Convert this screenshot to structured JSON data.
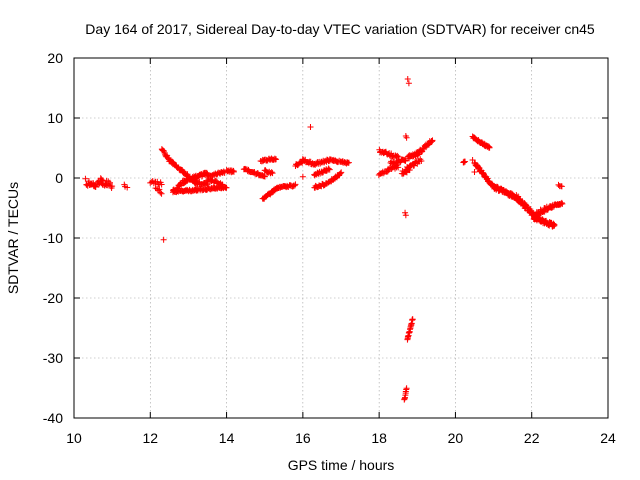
{
  "chart_data": {
    "type": "scatter",
    "title": "Day 164 of 2017, Sidereal Day-to-day VTEC variation (SDTVAR) for receiver cn45",
    "xlabel": "GPS time / hours",
    "ylabel": "SDTVAR / TECUs",
    "xlim": [
      10,
      24
    ],
    "ylim": [
      -40,
      20
    ],
    "x_ticks": [
      10,
      12,
      14,
      16,
      18,
      20,
      22,
      24
    ],
    "y_ticks": [
      20,
      10,
      0,
      -10,
      -20,
      -30,
      -40
    ],
    "x_tick_labels": [
      "10",
      "12",
      "14",
      "16",
      "18",
      "20",
      "22",
      "24"
    ],
    "y_tick_labels": [
      "20",
      "10",
      "0",
      "-10",
      "-20",
      "-30",
      "-40"
    ],
    "grid": true,
    "marker": "+",
    "color": "#ff0000",
    "series": [
      {
        "name": "SDTVAR",
        "segments": [
          {
            "x0": 10.3,
            "x1": 10.55,
            "y0": -0.5,
            "y1": -1.5,
            "jitter": 1.2,
            "step": 0.02
          },
          {
            "x0": 10.5,
            "x1": 10.75,
            "y0": -1.2,
            "y1": -0.8,
            "jitter": 1.0,
            "step": 0.02
          },
          {
            "x0": 10.7,
            "x1": 11.0,
            "y0": -0.5,
            "y1": -1.3,
            "jitter": 1.1,
            "step": 0.02
          },
          {
            "x0": 11.3,
            "x1": 11.4,
            "y0": -1.2,
            "y1": -1.5,
            "jitter": 0.3,
            "step": 0.05
          },
          {
            "x0": 12.0,
            "x1": 12.3,
            "y0": -0.6,
            "y1": -1.0,
            "jitter": 0.5,
            "step": 0.03
          },
          {
            "x0": 12.15,
            "x1": 12.3,
            "y0": -1.5,
            "y1": -2.5,
            "jitter": 0.5,
            "step": 0.03
          },
          {
            "x0": 12.3,
            "x1": 12.5,
            "y0": 5.0,
            "y1": 3.0,
            "jitter": 0.5,
            "step": 0.015
          },
          {
            "x0": 12.5,
            "x1": 13.2,
            "y0": 3.0,
            "y1": -0.8,
            "jitter": 0.5,
            "step": 0.015
          },
          {
            "x0": 13.2,
            "x1": 13.5,
            "y0": -0.8,
            "y1": -1.0,
            "jitter": 0.4,
            "step": 0.02
          },
          {
            "x0": 12.6,
            "x1": 12.9,
            "y0": -2.2,
            "y1": -0.5,
            "jitter": 0.6,
            "step": 0.015
          },
          {
            "x0": 12.9,
            "x1": 13.5,
            "y0": -0.5,
            "y1": 0.8,
            "jitter": 0.5,
            "step": 0.015
          },
          {
            "x0": 12.6,
            "x1": 13.2,
            "y0": -2.3,
            "y1": -2.0,
            "jitter": 0.3,
            "step": 0.02
          },
          {
            "x0": 13.2,
            "x1": 14.0,
            "y0": -2.0,
            "y1": -1.5,
            "jitter": 0.3,
            "step": 0.02
          },
          {
            "x0": 13.5,
            "x1": 13.9,
            "y0": -0.3,
            "y1": -1.0,
            "jitter": 0.4,
            "step": 0.02
          },
          {
            "x0": 13.5,
            "x1": 13.95,
            "y0": 0.3,
            "y1": 1.0,
            "jitter": 0.3,
            "step": 0.02
          },
          {
            "x0": 14.0,
            "x1": 14.2,
            "y0": 1.3,
            "y1": 1.0,
            "jitter": 0.4,
            "step": 0.02
          },
          {
            "x0": 14.45,
            "x1": 15.0,
            "y0": 1.5,
            "y1": 0.2,
            "jitter": 0.3,
            "step": 0.02
          },
          {
            "x0": 14.9,
            "x1": 15.3,
            "y0": 2.9,
            "y1": 3.2,
            "jitter": 0.3,
            "step": 0.02
          },
          {
            "x0": 15.0,
            "x1": 15.2,
            "y0": 1.2,
            "y1": 0.8,
            "jitter": 0.3,
            "step": 0.02
          },
          {
            "x0": 14.95,
            "x1": 15.35,
            "y0": -3.5,
            "y1": -1.6,
            "jitter": 0.3,
            "step": 0.015
          },
          {
            "x0": 15.35,
            "x1": 15.8,
            "y0": -1.6,
            "y1": -1.2,
            "jitter": 0.3,
            "step": 0.02
          },
          {
            "x0": 15.8,
            "x1": 16.0,
            "y0": 2.0,
            "y1": 2.8,
            "jitter": 0.5,
            "step": 0.02
          },
          {
            "x0": 16.0,
            "x1": 16.3,
            "y0": 3.0,
            "y1": 2.3,
            "jitter": 0.4,
            "step": 0.02
          },
          {
            "x0": 16.3,
            "x1": 16.7,
            "y0": 2.3,
            "y1": 3.0,
            "jitter": 0.4,
            "step": 0.02
          },
          {
            "x0": 16.7,
            "x1": 17.2,
            "y0": 3.0,
            "y1": 2.5,
            "jitter": 0.3,
            "step": 0.02
          },
          {
            "x0": 16.3,
            "x1": 16.7,
            "y0": 0.5,
            "y1": 1.5,
            "jitter": 0.4,
            "step": 0.02
          },
          {
            "x0": 16.3,
            "x1": 16.6,
            "y0": -1.5,
            "y1": -1.0,
            "jitter": 0.4,
            "step": 0.02
          },
          {
            "x0": 16.6,
            "x1": 16.95,
            "y0": -1.0,
            "y1": 0.5,
            "jitter": 0.4,
            "step": 0.02
          },
          {
            "x0": 16.95,
            "x1": 17.0,
            "y0": 0.5,
            "y1": 1.0,
            "jitter": 0.3,
            "step": 0.02
          },
          {
            "x0": 18.0,
            "x1": 18.5,
            "y0": 4.5,
            "y1": 3.5,
            "jitter": 0.5,
            "step": 0.02
          },
          {
            "x0": 18.0,
            "x1": 18.5,
            "y0": 0.8,
            "y1": 2.0,
            "jitter": 0.6,
            "step": 0.02
          },
          {
            "x0": 18.3,
            "x1": 18.7,
            "y0": 2.5,
            "y1": 3.0,
            "jitter": 0.5,
            "step": 0.02
          },
          {
            "x0": 18.6,
            "x1": 18.8,
            "y0": 1.0,
            "y1": 1.5,
            "jitter": 0.8,
            "step": 0.015
          },
          {
            "x0": 18.75,
            "x1": 19.0,
            "y0": 3.5,
            "y1": 4.0,
            "jitter": 0.6,
            "step": 0.015
          },
          {
            "x0": 19.0,
            "x1": 19.4,
            "y0": 4.0,
            "y1": 6.3,
            "jitter": 0.6,
            "step": 0.015
          },
          {
            "x0": 18.7,
            "x1": 19.1,
            "y0": 1.5,
            "y1": 3.0,
            "jitter": 0.5,
            "step": 0.02
          },
          {
            "x0": 18.74,
            "x1": 18.88,
            "y0": -27.0,
            "y1": -23.5,
            "jitter": 0.4,
            "step": 0.008
          },
          {
            "x0": 18.66,
            "x1": 18.72,
            "y0": -37.0,
            "y1": -35.0,
            "jitter": 0.4,
            "step": 0.008
          },
          {
            "x0": 20.2,
            "x1": 20.25,
            "y0": 2.5,
            "y1": 2.8,
            "jitter": 0.2,
            "step": 0.02
          },
          {
            "x0": 20.45,
            "x1": 20.9,
            "y0": 6.8,
            "y1": 5.0,
            "jitter": 0.3,
            "step": 0.015
          },
          {
            "x0": 20.5,
            "x1": 21.0,
            "y0": 2.5,
            "y1": -1.5,
            "jitter": 0.4,
            "step": 0.01
          },
          {
            "x0": 21.0,
            "x1": 21.6,
            "y0": -1.5,
            "y1": -3.2,
            "jitter": 0.6,
            "step": 0.01
          },
          {
            "x0": 21.6,
            "x1": 22.15,
            "y0": -3.2,
            "y1": -6.8,
            "jitter": 0.8,
            "step": 0.01
          },
          {
            "x0": 22.05,
            "x1": 22.6,
            "y0": -6.5,
            "y1": -8.0,
            "jitter": 0.7,
            "step": 0.01
          },
          {
            "x0": 22.1,
            "x1": 22.5,
            "y0": -6.0,
            "y1": -4.8,
            "jitter": 0.7,
            "step": 0.015
          },
          {
            "x0": 22.5,
            "x1": 22.8,
            "y0": -4.8,
            "y1": -4.2,
            "jitter": 0.4,
            "step": 0.015
          },
          {
            "x0": 22.7,
            "x1": 22.8,
            "y0": -1.2,
            "y1": -1.4,
            "jitter": 0.2,
            "step": 0.03
          }
        ],
        "isolated_points": [
          {
            "x": 12.35,
            "y": -10.3
          },
          {
            "x": 16.0,
            "y": 0.2
          },
          {
            "x": 16.2,
            "y": 8.5
          },
          {
            "x": 18.75,
            "y": 16.5
          },
          {
            "x": 18.78,
            "y": 15.8
          },
          {
            "x": 18.7,
            "y": 7.0
          },
          {
            "x": 18.72,
            "y": 6.7
          },
          {
            "x": 18.68,
            "y": -5.8
          },
          {
            "x": 18.7,
            "y": -6.2
          },
          {
            "x": 20.5,
            "y": 1.0
          },
          {
            "x": 20.45,
            "y": 3.0
          }
        ]
      }
    ]
  }
}
